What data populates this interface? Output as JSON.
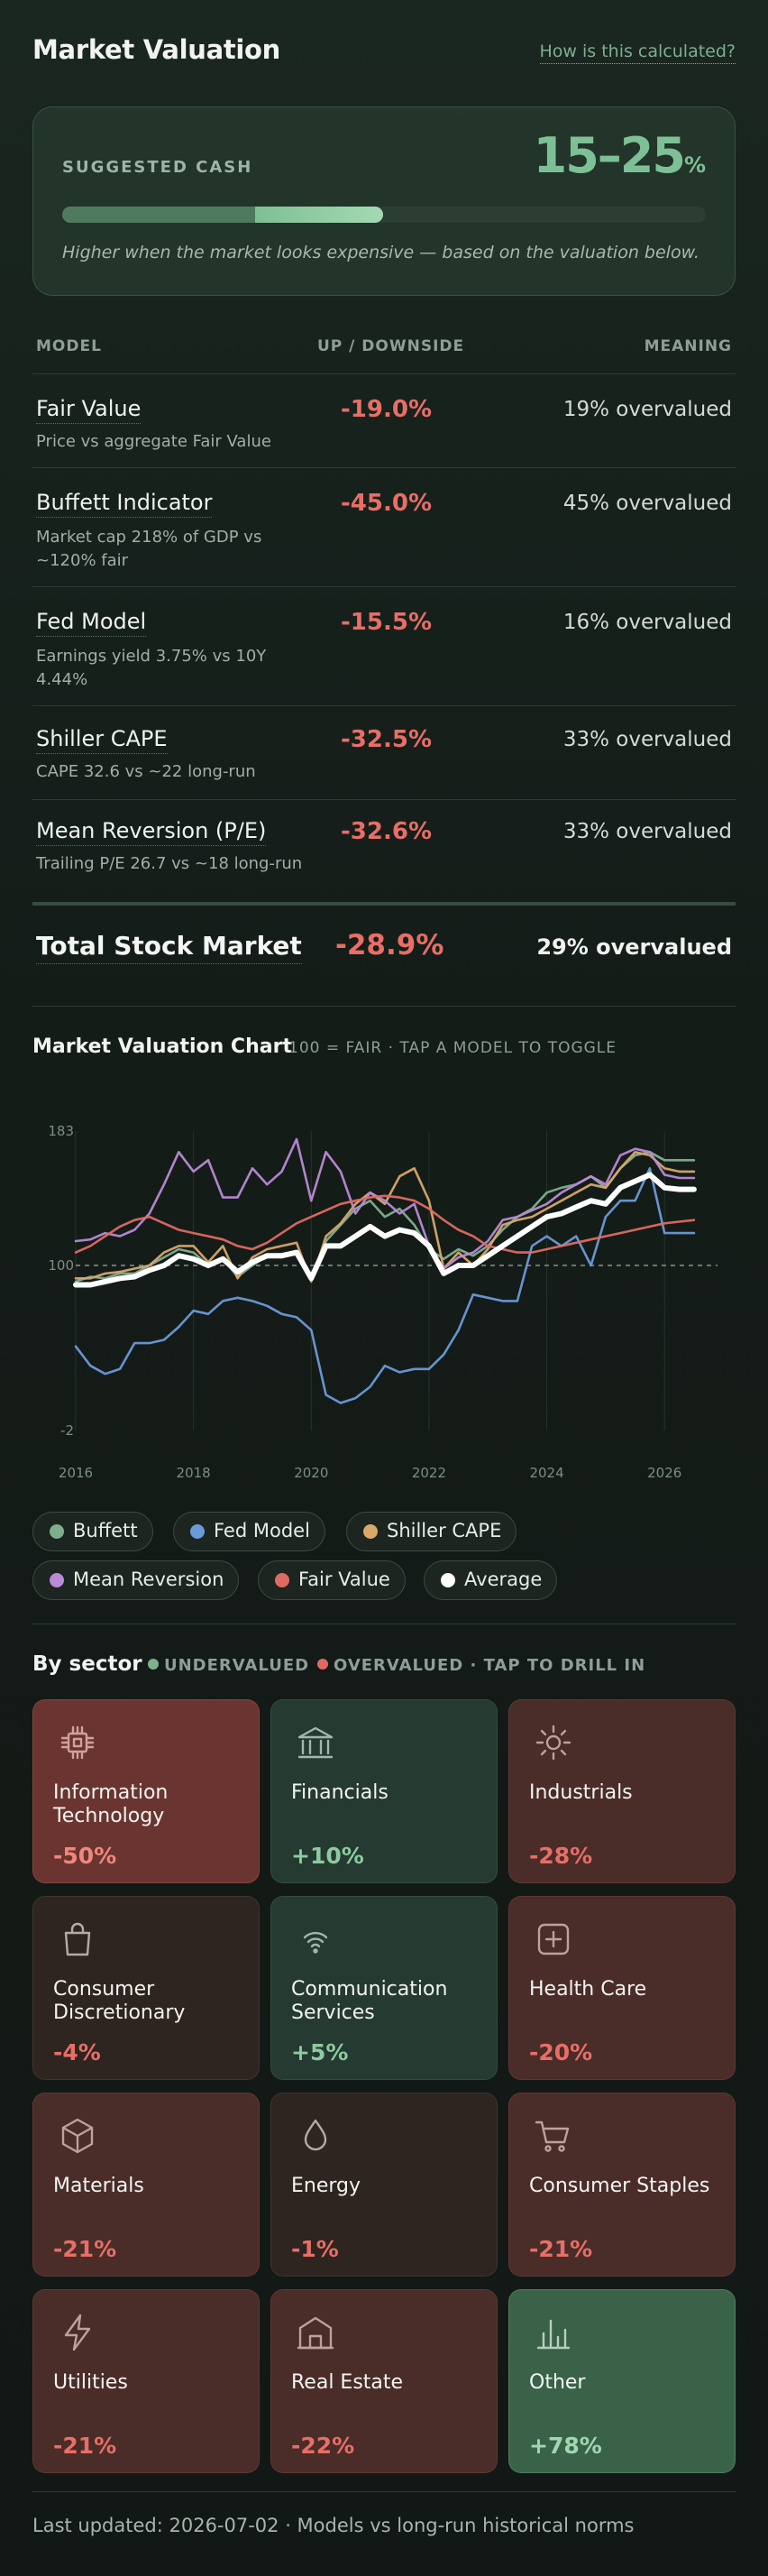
{
  "header": {
    "title": "Market Valuation",
    "link": "How is this calculated?"
  },
  "cash": {
    "label": "SUGGESTED CASH",
    "value": "15–25",
    "unit": "%",
    "range_low_pct": 15,
    "range_high_pct": 25,
    "note": "Higher when the market looks expensive — based on the valuation below."
  },
  "table": {
    "headers": {
      "model": "MODEL",
      "up": "UP / DOWNSIDE",
      "meaning": "MEANING"
    },
    "rows": [
      {
        "name": "Fair Value",
        "sub": "Price vs aggregate Fair Value",
        "value": "-19.0%",
        "meaning": "19% overvalued"
      },
      {
        "name": "Buffett Indicator",
        "sub": "Market cap 218% of GDP vs ~120% fair",
        "value": "-45.0%",
        "meaning": "45% overvalued"
      },
      {
        "name": "Fed Model",
        "sub": "Earnings yield 3.75% vs 10Y 4.44%",
        "value": "-15.5%",
        "meaning": "16% overvalued"
      },
      {
        "name": "Shiller CAPE",
        "sub": "CAPE 32.6 vs ~22 long-run",
        "value": "-32.5%",
        "meaning": "33% overvalued"
      },
      {
        "name": "Mean Reversion (P/E)",
        "sub": "Trailing P/E 26.7 vs ~18 long-run",
        "value": "-32.6%",
        "meaning": "33% overvalued"
      }
    ],
    "total": {
      "name": "Total Stock Market",
      "value": "-28.9%",
      "meaning": "29% overvalued"
    }
  },
  "chart": {
    "title": "Market Valuation Chart",
    "subtitle": "100 = FAIR · TAP A MODEL TO TOGGLE",
    "legend": [
      {
        "name": "Buffett",
        "color": "#7fb08e"
      },
      {
        "name": "Fed Model",
        "color": "#6a9bd8"
      },
      {
        "name": "Shiller CAPE",
        "color": "#d8a86a"
      },
      {
        "name": "Mean Reversion",
        "color": "#b98ad6"
      },
      {
        "name": "Fair Value",
        "color": "#e06a62"
      },
      {
        "name": "Average",
        "color": "#ffffff"
      }
    ]
  },
  "chart_data": {
    "type": "line",
    "ylim": [
      -2,
      183
    ],
    "yticks": [
      "183",
      "100",
      "-2"
    ],
    "xticks": [
      "2016",
      "2018",
      "2020",
      "2022",
      "2024",
      "2026"
    ],
    "x": [
      2016.0,
      2016.25,
      2016.5,
      2016.75,
      2017.0,
      2017.25,
      2017.5,
      2017.75,
      2018.0,
      2018.25,
      2018.5,
      2018.75,
      2019.0,
      2019.25,
      2019.5,
      2019.75,
      2020.0,
      2020.25,
      2020.5,
      2020.75,
      2021.0,
      2021.25,
      2021.5,
      2021.75,
      2022.0,
      2022.25,
      2022.5,
      2022.75,
      2023.0,
      2023.25,
      2023.5,
      2023.75,
      2024.0,
      2024.25,
      2024.5,
      2024.75,
      2025.0,
      2025.25,
      2025.5,
      2025.75,
      2026.0,
      2026.25,
      2026.5
    ],
    "series": [
      {
        "name": "Buffett",
        "color": "#7fb08e",
        "values": [
          90,
          93,
          92,
          95,
          95,
          100,
          105,
          110,
          108,
          100,
          104,
          93,
          100,
          106,
          105,
          108,
          92,
          115,
          125,
          135,
          140,
          130,
          135,
          125,
          110,
          104,
          110,
          106,
          112,
          122,
          130,
          135,
          145,
          148,
          150,
          155,
          148,
          160,
          168,
          170,
          165,
          165,
          165
        ]
      },
      {
        "name": "Fed Model",
        "color": "#6a9bd8",
        "values": [
          50,
          38,
          33,
          36,
          52,
          52,
          54,
          62,
          72,
          70,
          78,
          80,
          78,
          75,
          70,
          68,
          60,
          20,
          15,
          18,
          25,
          38,
          34,
          36,
          36,
          45,
          60,
          82,
          80,
          78,
          78,
          112,
          118,
          112,
          118,
          100,
          130,
          140,
          140,
          160,
          120,
          120,
          120
        ]
      },
      {
        "name": "Shiller CAPE",
        "color": "#d8a86a",
        "values": [
          92,
          92,
          95,
          96,
          98,
          100,
          108,
          112,
          112,
          102,
          112,
          92,
          105,
          110,
          112,
          114,
          90,
          118,
          126,
          138,
          145,
          138,
          155,
          160,
          140,
          98,
          108,
          100,
          110,
          125,
          128,
          130,
          135,
          140,
          145,
          150,
          148,
          160,
          170,
          168,
          160,
          158,
          158
        ]
      },
      {
        "name": "Mean Reversion",
        "color": "#b98ad6",
        "values": [
          115,
          116,
          120,
          118,
          122,
          132,
          150,
          170,
          158,
          165,
          142,
          142,
          160,
          150,
          158,
          178,
          140,
          170,
          158,
          132,
          145,
          140,
          132,
          138,
          112,
          98,
          105,
          108,
          115,
          128,
          130,
          134,
          138,
          145,
          150,
          155,
          150,
          168,
          172,
          170,
          156,
          154,
          154
        ]
      },
      {
        "name": "Fair Value",
        "color": "#e06a62",
        "values": [
          108,
          112,
          118,
          124,
          128,
          130,
          126,
          122,
          120,
          118,
          116,
          112,
          110,
          114,
          120,
          126,
          130,
          134,
          138,
          140,
          142,
          143,
          142,
          140,
          135,
          128,
          122,
          118,
          112,
          110,
          108,
          108,
          110,
          112,
          114,
          116,
          118,
          120,
          122,
          124,
          126,
          127,
          128
        ]
      },
      {
        "name": "Average",
        "color": "#ffffff",
        "values": [
          88,
          88,
          90,
          92,
          93,
          97,
          100,
          106,
          104,
          100,
          104,
          96,
          102,
          106,
          106,
          108,
          92,
          112,
          112,
          118,
          124,
          118,
          122,
          120,
          112,
          95,
          100,
          100,
          106,
          112,
          118,
          124,
          130,
          132,
          136,
          140,
          138,
          148,
          152,
          156,
          148,
          147,
          147
        ]
      }
    ]
  },
  "sectors": {
    "title": "By sector",
    "key_under": "UNDERVALUED",
    "key_over": "OVERVALUED · TAP TO DRILL IN",
    "color_under": "#7fb08e",
    "color_over": "#e06a62",
    "items": [
      {
        "name": "Information Technology",
        "value": "-50%",
        "icon": "chip-icon",
        "kind": "over-strong"
      },
      {
        "name": "Financials",
        "value": "+10%",
        "icon": "bank-icon",
        "kind": "under"
      },
      {
        "name": "Industrials",
        "value": "-28%",
        "icon": "sun-gear-icon",
        "kind": "over"
      },
      {
        "name": "Consumer Discretionary",
        "value": "-4%",
        "icon": "shopping-bag-icon",
        "kind": "over-weak"
      },
      {
        "name": "Communication Services",
        "value": "+5%",
        "icon": "wifi-icon",
        "kind": "under"
      },
      {
        "name": "Health Care",
        "value": "-20%",
        "icon": "medical-plus-icon",
        "kind": "over"
      },
      {
        "name": "Materials",
        "value": "-21%",
        "icon": "cube-icon",
        "kind": "over"
      },
      {
        "name": "Energy",
        "value": "-1%",
        "icon": "droplet-icon",
        "kind": "over-weak"
      },
      {
        "name": "Consumer Staples",
        "value": "-21%",
        "icon": "cart-icon",
        "kind": "over"
      },
      {
        "name": "Utilities",
        "value": "-21%",
        "icon": "lightning-icon",
        "kind": "over"
      },
      {
        "name": "Real Estate",
        "value": "-22%",
        "icon": "house-icon",
        "kind": "over"
      },
      {
        "name": "Other",
        "value": "+78%",
        "icon": "bar-chart-icon",
        "kind": "under-strong"
      }
    ]
  },
  "footer": {
    "text": "Last updated: 2026-07-02 · Models vs long-run historical norms"
  }
}
